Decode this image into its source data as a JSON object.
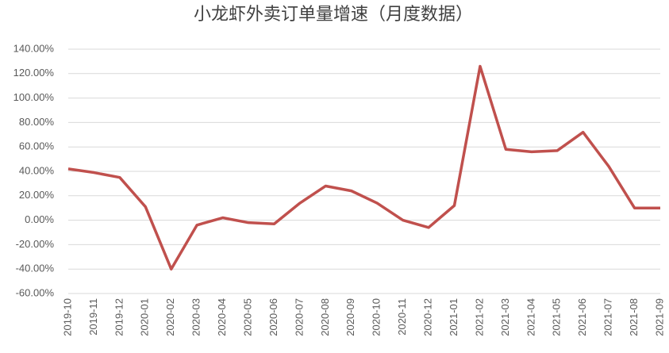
{
  "chart_data": {
    "type": "line",
    "title": "小龙虾外卖订单量增速（月度数据）",
    "categories": [
      "2019-10",
      "2019-11",
      "2019-12",
      "2020-01",
      "2020-02",
      "2020-03",
      "2020-04",
      "2020-05",
      "2020-06",
      "2020-07",
      "2020-08",
      "2020-09",
      "2020-10",
      "2020-11",
      "2020-12",
      "2021-01",
      "2021-02",
      "2021-03",
      "2021-04",
      "2021-05",
      "2021-06",
      "2021-07",
      "2021-08",
      "2021-09"
    ],
    "series": [
      {
        "color": "#c0504d",
        "values": [
          42,
          39,
          35,
          11,
          -40,
          -4,
          2,
          -2,
          -3,
          14,
          28,
          24,
          14,
          0,
          -6,
          12,
          126,
          58,
          56,
          57,
          72,
          44,
          10,
          10
        ]
      }
    ],
    "ylim": [
      -60,
      140
    ],
    "yticks": [
      {
        "value": -60,
        "label": "-60.00%"
      },
      {
        "value": -40,
        "label": "-40.00%"
      },
      {
        "value": -20,
        "label": "-20.00%"
      },
      {
        "value": 0,
        "label": "0.00%"
      },
      {
        "value": 20,
        "label": "20.00%"
      },
      {
        "value": 40,
        "label": "40.00%"
      },
      {
        "value": 60,
        "label": "60.00%"
      },
      {
        "value": 80,
        "label": "80.00%"
      },
      {
        "value": 100,
        "label": "100.00%"
      },
      {
        "value": 120,
        "label": "120.00%"
      },
      {
        "value": 140,
        "label": "140.00%"
      }
    ],
    "grid": true
  }
}
